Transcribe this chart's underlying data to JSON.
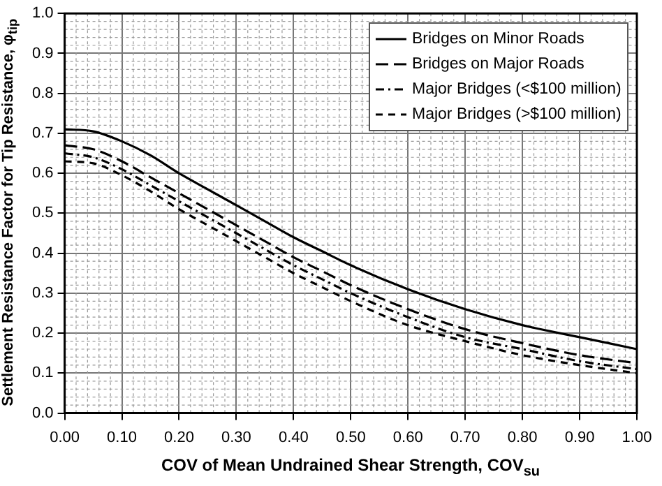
{
  "chart_data": {
    "type": "line",
    "xlabel": "COV of Mean Undrained Shear Strength, COV$_{su}$",
    "ylabel": "Settlement Resistance Factor for Tip Resistance, φ$_{tip}$",
    "x": [
      0,
      0.05,
      0.1,
      0.15,
      0.2,
      0.25,
      0.3,
      0.35,
      0.4,
      0.45,
      0.5,
      0.6,
      0.7,
      0.8,
      0.9,
      1.0
    ],
    "series": [
      {
        "name": "Bridges on Minor Roads",
        "color": "#000000",
        "line_style": "solid",
        "values": [
          0.71,
          0.705,
          0.68,
          0.645,
          0.6,
          0.56,
          0.52,
          0.48,
          0.44,
          0.405,
          0.37,
          0.31,
          0.26,
          0.22,
          0.19,
          0.16
        ]
      },
      {
        "name": "Bridges on Major Roads",
        "color": "#000000",
        "line_style": "dashed",
        "values": [
          0.67,
          0.66,
          0.63,
          0.59,
          0.55,
          0.51,
          0.47,
          0.43,
          0.39,
          0.355,
          0.32,
          0.26,
          0.21,
          0.175,
          0.145,
          0.125
        ]
      },
      {
        "name": "Major Bridges (<$100 million)",
        "color": "#000000",
        "line_style": "dotted",
        "values": [
          0.65,
          0.64,
          0.61,
          0.57,
          0.53,
          0.49,
          0.45,
          0.41,
          0.37,
          0.335,
          0.3,
          0.24,
          0.19,
          0.16,
          0.13,
          0.11
        ]
      },
      {
        "name": "Major Bridges (>$100 million)",
        "color": "#000000",
        "line_style": "dashed",
        "values": [
          0.63,
          0.625,
          0.595,
          0.555,
          0.51,
          0.47,
          0.43,
          0.39,
          0.35,
          0.315,
          0.28,
          0.22,
          0.18,
          0.145,
          0.12,
          0.1
        ]
      }
    ],
    "xlim": [
      0,
      1
    ],
    "ylim": [
      0,
      1
    ],
    "xticks": [
      {
        "value": 0,
        "label": "0.00"
      },
      {
        "value": 0.1,
        "label": "0.10"
      },
      {
        "value": 0.2,
        "label": "0.20"
      },
      {
        "value": 0.3,
        "label": "0.30"
      },
      {
        "value": 0.4,
        "label": "0.40"
      },
      {
        "value": 0.5,
        "label": "0.50"
      },
      {
        "value": 0.6,
        "label": "0.60"
      },
      {
        "value": 0.7,
        "label": "0.70"
      },
      {
        "value": 0.8,
        "label": "0.80"
      },
      {
        "value": 0.9,
        "label": "0.90"
      },
      {
        "value": 1,
        "label": "1.00"
      }
    ],
    "yticks": [
      {
        "value": 0,
        "label": "0.0"
      },
      {
        "value": 0.1,
        "label": "0.1"
      },
      {
        "value": 0.2,
        "label": "0.2"
      },
      {
        "value": 0.3,
        "label": "0.3"
      },
      {
        "value": 0.4,
        "label": "0.4"
      },
      {
        "value": 0.5,
        "label": "0.5"
      },
      {
        "value": 0.6,
        "label": "0.6"
      },
      {
        "value": 0.7,
        "label": "0.7"
      },
      {
        "value": 0.8,
        "label": "0.8"
      },
      {
        "value": 0.9,
        "label": "0.9"
      },
      {
        "value": 1,
        "label": "1.0"
      }
    ],
    "grid": true,
    "legend": "top right",
    "marker": "none"
  }
}
